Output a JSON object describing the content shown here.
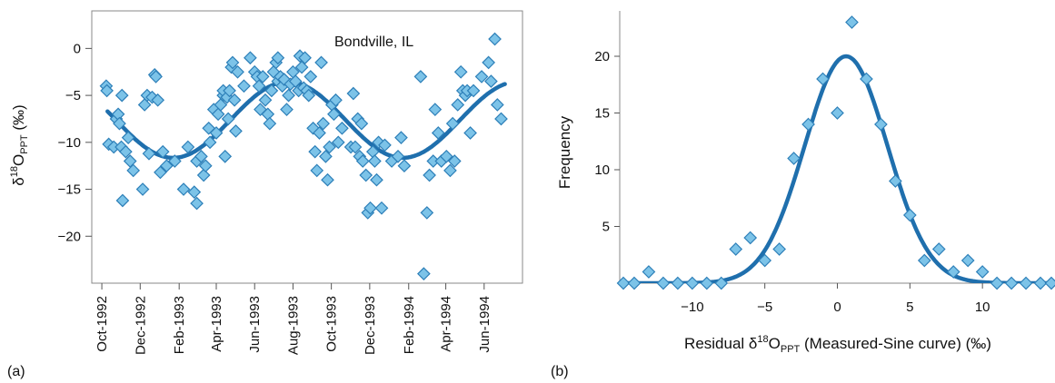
{
  "figure": {
    "colors": {
      "marker_fill": "#7cc3e8",
      "marker_stroke": "#2d7fb8",
      "curve": "#1f6fad"
    }
  },
  "chart_data": [
    {
      "panel_label": "(a)",
      "type": "scatter",
      "title": "",
      "annotation": "Bondville, IL",
      "xlabel": "",
      "ylabel": "δ18OPPT (‰)",
      "ylabel_parts": {
        "delta": "δ",
        "sup": "18",
        "base": "O",
        "sub": "PPT",
        "tail": " (‰)"
      },
      "x_axis_type": "date",
      "x_range": [
        "1992-09-15",
        "1994-08-01"
      ],
      "ylim": [
        -25,
        4
      ],
      "x_ticks": [
        {
          "date": "1992-10-01",
          "label": "Oct-1992"
        },
        {
          "date": "1992-12-01",
          "label": "Dec-1992"
        },
        {
          "date": "1993-02-01",
          "label": "Feb-1993"
        },
        {
          "date": "1993-04-01",
          "label": "Apr-1993"
        },
        {
          "date": "1993-06-01",
          "label": "Jun-1993"
        },
        {
          "date": "1993-08-01",
          "label": "Aug-1993"
        },
        {
          "date": "1993-10-01",
          "label": "Oct-1993"
        },
        {
          "date": "1993-12-01",
          "label": "Dec-1993"
        },
        {
          "date": "1994-02-01",
          "label": "Feb-1994"
        },
        {
          "date": "1994-04-01",
          "label": "Apr-1994"
        },
        {
          "date": "1994-06-01",
          "label": "Jun-1994"
        }
      ],
      "y_ticks": [
        0,
        -5,
        -10,
        -15,
        -20
      ],
      "y_tick_labels": [
        "0",
        "−5",
        "−10",
        "−15",
        "−20"
      ],
      "grid": false,
      "series": [
        {
          "kind": "points",
          "points": [
            [
              "1992-10-08",
              -4.0
            ],
            [
              "1992-10-09",
              -4.5
            ],
            [
              "1992-10-12",
              -10.2
            ],
            [
              "1992-10-20",
              -10.5
            ],
            [
              "1992-10-24",
              -7.5
            ],
            [
              "1992-10-27",
              -7.0
            ],
            [
              "1992-10-29",
              -8.0
            ],
            [
              "1992-11-01",
              -10.5
            ],
            [
              "1992-11-02",
              -5.0
            ],
            [
              "1992-11-03",
              -16.2
            ],
            [
              "1992-11-08",
              -11.0
            ],
            [
              "1992-11-12",
              -9.5
            ],
            [
              "1992-11-15",
              -12.0
            ],
            [
              "1992-11-20",
              -13.0
            ],
            [
              "1992-12-05",
              -15.0
            ],
            [
              "1992-12-08",
              -6.0
            ],
            [
              "1992-12-12",
              -5.0
            ],
            [
              "1992-12-15",
              -11.2
            ],
            [
              "1992-12-20",
              -5.2
            ],
            [
              "1992-12-24",
              -2.8
            ],
            [
              "1992-12-26",
              -3.0
            ],
            [
              "1992-12-29",
              -5.5
            ],
            [
              "1993-01-02",
              -13.2
            ],
            [
              "1993-01-06",
              -11.0
            ],
            [
              "1993-01-12",
              -12.5
            ],
            [
              "1993-01-25",
              -12.0
            ],
            [
              "1993-02-08",
              -15.0
            ],
            [
              "1993-02-15",
              -10.5
            ],
            [
              "1993-02-25",
              -15.3
            ],
            [
              "1993-03-01",
              -16.5
            ],
            [
              "1993-03-01",
              -12.0
            ],
            [
              "1993-03-08",
              -11.5
            ],
            [
              "1993-03-12",
              -13.5
            ],
            [
              "1993-03-15",
              -12.5
            ],
            [
              "1993-03-20",
              -8.5
            ],
            [
              "1993-03-22",
              -10.0
            ],
            [
              "1993-03-28",
              -6.5
            ],
            [
              "1993-04-01",
              -9.0
            ],
            [
              "1993-04-04",
              -7.0
            ],
            [
              "1993-04-08",
              -6.0
            ],
            [
              "1993-04-12",
              -5.0
            ],
            [
              "1993-04-12",
              -4.5
            ],
            [
              "1993-04-15",
              -11.5
            ],
            [
              "1993-04-18",
              -5.2
            ],
            [
              "1993-04-20",
              -7.5
            ],
            [
              "1993-04-22",
              -4.5
            ],
            [
              "1993-04-25",
              -2.0
            ],
            [
              "1993-04-27",
              -1.5
            ],
            [
              "1993-04-30",
              -5.5
            ],
            [
              "1993-05-02",
              -8.8
            ],
            [
              "1993-05-05",
              -2.5
            ],
            [
              "1993-05-15",
              -4.0
            ],
            [
              "1993-05-25",
              -1.0
            ],
            [
              "1993-06-01",
              -2.5
            ],
            [
              "1993-06-05",
              -3.0
            ],
            [
              "1993-06-08",
              -4.0
            ],
            [
              "1993-06-10",
              -6.5
            ],
            [
              "1993-06-14",
              -3.0
            ],
            [
              "1993-06-18",
              -5.5
            ],
            [
              "1993-06-22",
              -7.0
            ],
            [
              "1993-06-25",
              -8.0
            ],
            [
              "1993-06-28",
              -4.5
            ],
            [
              "1993-07-01",
              -2.5
            ],
            [
              "1993-07-05",
              -1.5
            ],
            [
              "1993-07-08",
              -3.5
            ],
            [
              "1993-07-08",
              -1.0
            ],
            [
              "1993-07-12",
              -3.0
            ],
            [
              "1993-07-15",
              -4.0
            ],
            [
              "1993-07-18",
              -3.3
            ],
            [
              "1993-07-22",
              -6.5
            ],
            [
              "1993-07-25",
              -5.0
            ],
            [
              "1993-07-28",
              -3.8
            ],
            [
              "1993-08-01",
              -2.5
            ],
            [
              "1993-08-05",
              -3.5
            ],
            [
              "1993-08-10",
              -4.5
            ],
            [
              "1993-08-12",
              -0.8
            ],
            [
              "1993-08-15",
              -2.0
            ],
            [
              "1993-08-18",
              -4.2
            ],
            [
              "1993-08-20",
              -1.0
            ],
            [
              "1993-08-23",
              -4.5
            ],
            [
              "1993-08-26",
              -5.0
            ],
            [
              "1993-08-29",
              -3.0
            ],
            [
              "1993-09-02",
              -8.5
            ],
            [
              "1993-09-05",
              -11.0
            ],
            [
              "1993-09-08",
              -13.0
            ],
            [
              "1993-09-12",
              -9.0
            ],
            [
              "1993-09-15",
              -1.5
            ],
            [
              "1993-09-18",
              -8.0
            ],
            [
              "1993-09-22",
              -11.5
            ],
            [
              "1993-09-25",
              -14.0
            ],
            [
              "1993-09-28",
              -10.5
            ],
            [
              "1993-10-02",
              -6.0
            ],
            [
              "1993-10-05",
              -7.0
            ],
            [
              "1993-10-08",
              -5.5
            ],
            [
              "1993-10-12",
              -10.0
            ],
            [
              "1993-10-18",
              -8.5
            ],
            [
              "1993-11-01",
              -10.5
            ],
            [
              "1993-11-05",
              -4.8
            ],
            [
              "1993-11-08",
              -10.5
            ],
            [
              "1993-11-12",
              -7.5
            ],
            [
              "1993-11-15",
              -11.5
            ],
            [
              "1993-11-18",
              -8.0
            ],
            [
              "1993-11-20",
              -12.0
            ],
            [
              "1993-11-25",
              -13.5
            ],
            [
              "1993-11-28",
              -17.5
            ],
            [
              "1993-12-02",
              -17.0
            ],
            [
              "1993-12-06",
              -11.0
            ],
            [
              "1993-12-09",
              -12.0
            ],
            [
              "1993-12-12",
              -14.0
            ],
            [
              "1993-12-15",
              -10.0
            ],
            [
              "1993-12-20",
              -17.0
            ],
            [
              "1993-12-25",
              -10.3
            ],
            [
              "1994-01-05",
              -12.0
            ],
            [
              "1994-01-15",
              -11.5
            ],
            [
              "1994-01-20",
              -9.5
            ],
            [
              "1994-01-25",
              -12.5
            ],
            [
              "1994-02-20",
              -3.0
            ],
            [
              "1994-02-25",
              -24.0
            ],
            [
              "1994-03-02",
              -17.5
            ],
            [
              "1994-03-06",
              -13.5
            ],
            [
              "1994-03-12",
              -12.0
            ],
            [
              "1994-03-15",
              -6.5
            ],
            [
              "1994-03-20",
              -9.0
            ],
            [
              "1994-03-25",
              -12.0
            ],
            [
              "1994-04-02",
              -11.5
            ],
            [
              "1994-04-08",
              -13.0
            ],
            [
              "1994-04-12",
              -8.0
            ],
            [
              "1994-04-15",
              -12.0
            ],
            [
              "1994-04-20",
              -6.0
            ],
            [
              "1994-04-25",
              -2.5
            ],
            [
              "1994-04-28",
              -4.5
            ],
            [
              "1994-05-02",
              -5.0
            ],
            [
              "1994-05-05",
              -4.5
            ],
            [
              "1994-05-10",
              -9.0
            ],
            [
              "1994-05-15",
              -4.5
            ],
            [
              "1994-05-28",
              -3.0
            ],
            [
              "1994-06-08",
              -1.5
            ],
            [
              "1994-06-12",
              -3.5
            ],
            [
              "1994-06-18",
              1.0
            ],
            [
              "1994-06-22",
              -6.0
            ],
            [
              "1994-06-28",
              -7.5
            ]
          ]
        },
        {
          "kind": "sine_fit",
          "start": "1992-10-10",
          "end": "1994-07-05",
          "mean": -7.6,
          "amplitude": 4.05,
          "peak_date": "1993-07-24",
          "period_days": 365.25
        }
      ]
    },
    {
      "panel_label": "(b)",
      "type": "scatter",
      "title": "",
      "xlabel": "Residual δ18OPPT (Measured-Sine curve) (‰)",
      "xlabel_parts": {
        "pre": "Residual δ",
        "sup": "18",
        "base": "O",
        "sub": "PPT",
        "tail": " (Measured-Sine curve) (‰)"
      },
      "ylabel": "Frequency",
      "xlim": [
        -15,
        15
      ],
      "ylim": [
        0,
        24
      ],
      "x_ticks": [
        -10,
        -5,
        0,
        5,
        10
      ],
      "x_tick_labels": [
        "−10",
        "−5",
        "0",
        "5",
        "10"
      ],
      "y_ticks": [
        5,
        10,
        15,
        20
      ],
      "y_tick_labels": [
        "5",
        "10",
        "15",
        "20"
      ],
      "grid": false,
      "series": [
        {
          "kind": "points",
          "x": [
            -15,
            -14,
            -13,
            -12,
            -11,
            -10,
            -9,
            -8,
            -7,
            -6,
            -5,
            -4,
            -3,
            -2,
            -1,
            0,
            1,
            2,
            3,
            4,
            5,
            6,
            7,
            8,
            9,
            10,
            11,
            12,
            13,
            14,
            15
          ],
          "y": [
            0,
            0,
            1,
            0,
            0,
            0,
            0,
            0,
            3,
            4,
            2,
            3,
            11,
            14,
            18,
            15,
            23,
            18,
            14,
            9,
            6,
            2,
            3,
            1,
            2,
            1,
            0,
            0,
            0,
            0,
            0
          ]
        },
        {
          "kind": "gaussian_fit",
          "amplitude": 20.0,
          "mean": 0.6,
          "sigma": 2.85
        }
      ]
    }
  ]
}
